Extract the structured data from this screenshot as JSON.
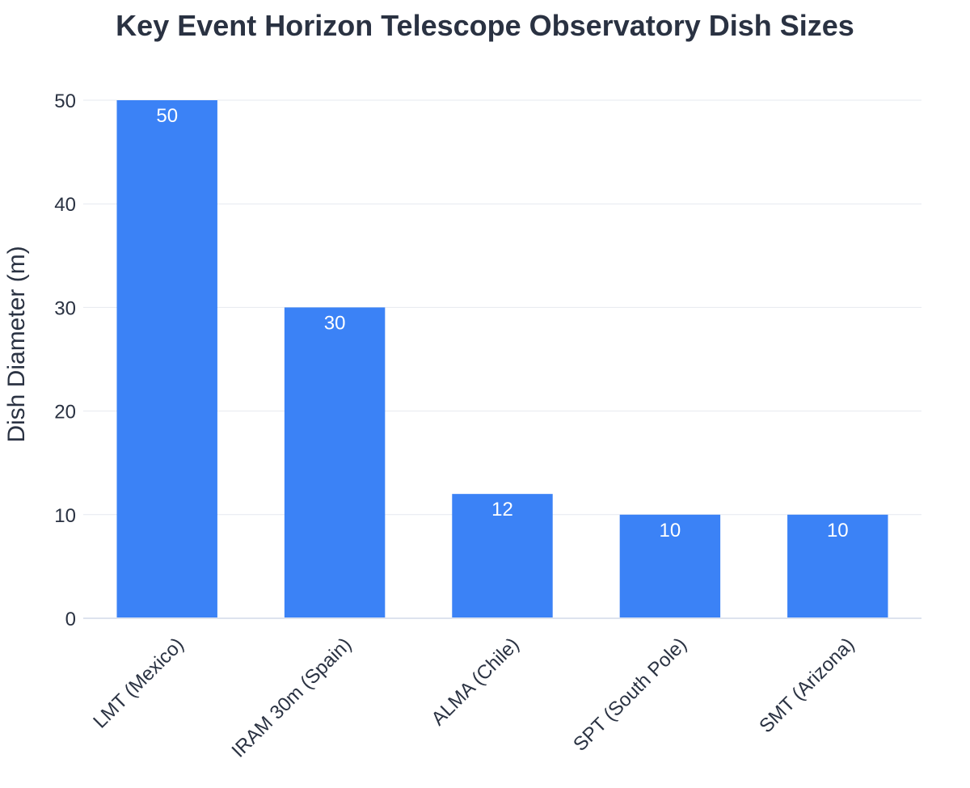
{
  "chart_data": {
    "type": "bar",
    "title": "Key Event Horizon Telescope Observatory Dish Sizes",
    "xlabel": "",
    "ylabel": "Dish Diameter (m)",
    "categories": [
      "LMT (Mexico)",
      "IRAM 30m (Spain)",
      "ALMA (Chile)",
      "SPT (South Pole)",
      "SMT (Arizona)"
    ],
    "values": [
      50,
      30,
      12,
      10,
      10
    ],
    "data_labels": [
      "50",
      "30",
      "12",
      "10",
      "10"
    ],
    "ylim": [
      0,
      50
    ],
    "yticks": [
      0,
      10,
      20,
      30,
      40,
      50
    ],
    "ytick_labels": [
      "0",
      "10",
      "20",
      "30",
      "40",
      "50"
    ],
    "grid": true,
    "bar_color": "#3b82f6",
    "text_color": "#2a3242"
  }
}
